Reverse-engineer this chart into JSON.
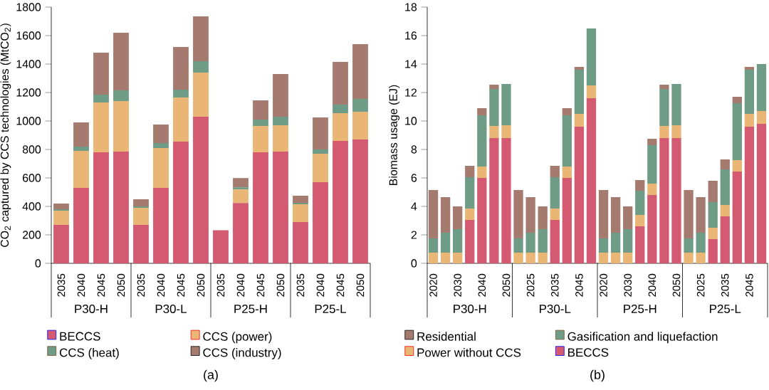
{
  "chart_data": [
    {
      "type": "bar",
      "stacked": true,
      "ylabel": "CO$_{2}$ captured by CCS technologies (MtCO$_{2}$)",
      "categories": [
        "2035",
        "2040",
        "2045",
        "2050",
        "2035",
        "2040",
        "2045",
        "2050",
        "2035",
        "2040",
        "2045",
        "2050",
        "2035",
        "2040",
        "2045",
        "2050"
      ],
      "series": [
        {
          "name": "BECCS",
          "color": "#d45a72",
          "values": [
            270,
            530,
            780,
            785,
            270,
            530,
            855,
            1030,
            232,
            424,
            780,
            785,
            290,
            570,
            860,
            870
          ]
        },
        {
          "name": "CCS (power)",
          "color": "#eab676",
          "values": [
            100,
            260,
            350,
            355,
            120,
            280,
            310,
            310,
            0,
            95,
            185,
            185,
            125,
            200,
            195,
            195
          ]
        },
        {
          "name": "CCS (heat)",
          "color": "#6f9c86",
          "values": [
            10,
            30,
            55,
            75,
            10,
            35,
            55,
            80,
            0,
            15,
            45,
            60,
            10,
            30,
            60,
            90
          ]
        },
        {
          "name": "CCS (industry)",
          "color": "#a47b6e",
          "values": [
            40,
            170,
            295,
            405,
            50,
            130,
            300,
            315,
            0,
            65,
            135,
            300,
            50,
            225,
            300,
            385
          ]
        }
      ],
      "ylim": [
        0,
        1800
      ],
      "yticks": [
        0,
        200,
        400,
        600,
        800,
        1000,
        1200,
        1400,
        1600,
        1800
      ],
      "legend": "bottom",
      "annotations": [
        "P30-H",
        "P30-L",
        "P25-H",
        "P25-L",
        "(a)"
      ]
    },
    {
      "type": "bar",
      "stacked": true,
      "ylabel": "Biomass usage (EJ)",
      "categories": [
        "2020",
        null,
        "2030",
        null,
        "2040",
        null,
        "2050",
        null,
        "2025",
        null,
        "2035",
        null,
        "2045",
        null,
        "2020",
        null,
        "2030",
        null,
        "2040",
        null,
        "2050",
        null,
        "2025",
        null,
        "2035",
        null,
        "2045",
        null
      ],
      "series": [
        {
          "name": "BECCS",
          "color": "#d45a72",
          "values": [
            0,
            0,
            0,
            3.05,
            6.0,
            8.8,
            8.8,
            0,
            0,
            0,
            3.05,
            6.0,
            9.6,
            11.6,
            0,
            0,
            0,
            2.6,
            4.8,
            8.8,
            8.8,
            0,
            0,
            1.7,
            3.3,
            6.45,
            9.6,
            9.8
          ]
        },
        {
          "name": "Power without CCS",
          "color": "#eab676",
          "values": [
            0.75,
            0.75,
            0.75,
            0.8,
            0.8,
            0.85,
            0.9,
            0.75,
            0.75,
            0.75,
            0.8,
            0.8,
            0.9,
            0.9,
            0.75,
            0.75,
            0.75,
            0.8,
            0.8,
            0.85,
            0.9,
            0.75,
            0.75,
            0.8,
            0.8,
            0.8,
            0.9,
            0.9
          ]
        },
        {
          "name": "Gasification and liquefaction",
          "color": "#6f9c86",
          "values": [
            1.0,
            1.4,
            1.65,
            2.2,
            3.6,
            2.6,
            2.9,
            1.0,
            1.4,
            1.65,
            2.2,
            3.6,
            3.1,
            4.0,
            1.0,
            1.4,
            1.65,
            1.7,
            2.7,
            2.6,
            2.9,
            1.0,
            1.4,
            1.8,
            2.5,
            4.0,
            3.1,
            3.3
          ]
        },
        {
          "name": "Residential",
          "color": "#a47b6e",
          "values": [
            3.4,
            2.5,
            1.6,
            0.8,
            0.5,
            0.3,
            0,
            3.4,
            2.5,
            1.6,
            0.8,
            0.5,
            0.2,
            0,
            3.4,
            2.5,
            1.6,
            0.75,
            0.45,
            0.3,
            0,
            3.4,
            2.5,
            1.5,
            0.7,
            0.45,
            0.2,
            0
          ]
        }
      ],
      "ylim": [
        0,
        18
      ],
      "yticks": [
        0,
        2,
        4,
        6,
        8,
        10,
        12,
        14,
        16,
        18
      ],
      "legend": "bottom",
      "annotations": [
        "P30-H",
        "P30-L",
        "P25-H",
        "P25-L",
        "(b)"
      ]
    }
  ]
}
